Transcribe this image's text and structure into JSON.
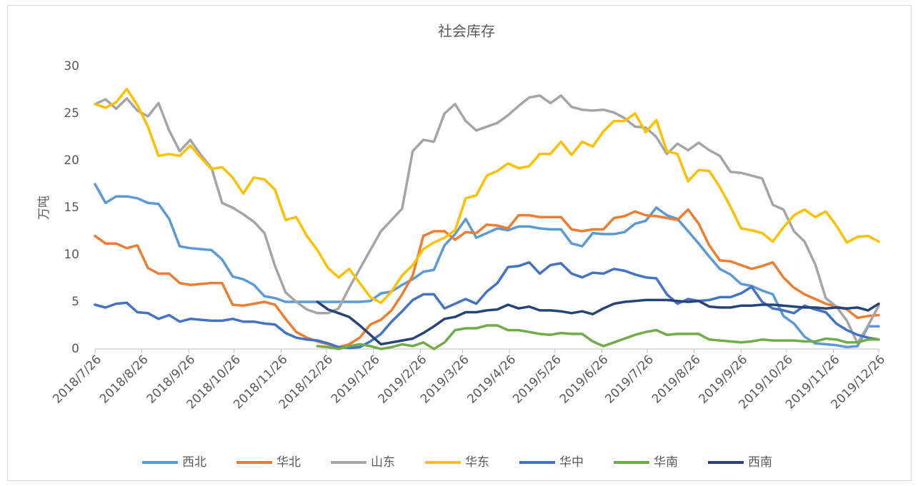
{
  "chart_data": {
    "type": "line",
    "title": "社会库存",
    "y_label": "万吨",
    "x": [
      "2018/7/26",
      "2018/8/2",
      "2018/8/9",
      "2018/8/16",
      "2018/8/23",
      "2018/8/30",
      "2018/9/6",
      "2018/9/13",
      "2018/9/20",
      "2018/9/27",
      "2018/10/4",
      "2018/10/11",
      "2018/10/18",
      "2018/10/25",
      "2018/11/1",
      "2018/11/8",
      "2018/11/15",
      "2018/11/22",
      "2018/11/29",
      "2018/12/6",
      "2018/12/13",
      "2018/12/20",
      "2018/12/27",
      "2019/1/3",
      "2019/1/10",
      "2019/1/17",
      "2019/1/24",
      "2019/1/31",
      "2019/2/7",
      "2019/2/14",
      "2019/2/21",
      "2019/2/28",
      "2019/3/7",
      "2019/3/14",
      "2019/3/21",
      "2019/3/28",
      "2019/4/4",
      "2019/4/11",
      "2019/4/18",
      "2019/4/25",
      "2019/5/2",
      "2019/5/9",
      "2019/5/16",
      "2019/5/23",
      "2019/5/30",
      "2019/6/6",
      "2019/6/13",
      "2019/6/20",
      "2019/6/27",
      "2019/7/4",
      "2019/7/11",
      "2019/7/18",
      "2019/7/25",
      "2019/8/1",
      "2019/8/8",
      "2019/8/15",
      "2019/8/22",
      "2019/8/29",
      "2019/9/5",
      "2019/9/12",
      "2019/9/19",
      "2019/9/26",
      "2019/10/3",
      "2019/10/10",
      "2019/10/17",
      "2019/10/24",
      "2019/10/31",
      "2019/11/7",
      "2019/11/14",
      "2019/11/21",
      "2019/11/28",
      "2019/12/5",
      "2019/12/12",
      "2019/12/19",
      "2019/12/26"
    ],
    "xlim": [
      "2018/7/26",
      "2019/12/26"
    ],
    "xticks": [
      "2018/7/26",
      "2018/8/26",
      "2018/9/26",
      "2018/10/26",
      "2018/11/26",
      "2018/12/26",
      "2019/1/26",
      "2019/2/26",
      "2019/3/26",
      "2019/4/26",
      "2019/5/26",
      "2019/6/26",
      "2019/7/26",
      "2019/8/26",
      "2019/9/26",
      "2019/10/26",
      "2019/11/26",
      "2019/12/26"
    ],
    "ylim": [
      0,
      30
    ],
    "yticks": [
      0,
      5,
      10,
      15,
      20,
      25,
      30
    ],
    "grid": false,
    "series": [
      {
        "name": "西北",
        "color": "#5b9bd5",
        "values": [
          17.5,
          15.5,
          16.2,
          16.2,
          16.0,
          15.5,
          15.4,
          13.8,
          10.9,
          10.7,
          10.6,
          10.5,
          9.5,
          7.7,
          7.4,
          6.8,
          5.6,
          5.4,
          5.0,
          5.0,
          5.0,
          5.0,
          5.0,
          5.0,
          5.0,
          5.0,
          5.1,
          5.9,
          6.1,
          6.8,
          7.4,
          8.2,
          8.4,
          11.0,
          12.2,
          13.8,
          11.8,
          12.3,
          12.8,
          12.6,
          13.0,
          13.0,
          12.8,
          12.7,
          12.7,
          11.2,
          10.9,
          12.3,
          12.2,
          12.2,
          12.4,
          13.3,
          13.6,
          15.0,
          14.2,
          13.8,
          12.5,
          11.2,
          9.8,
          8.5,
          7.9,
          6.9,
          6.7,
          6.2,
          5.8,
          3.5,
          2.7,
          1.3,
          0.6,
          0.5,
          0.4,
          0.2,
          0.3,
          2.4,
          2.4
        ]
      },
      {
        "name": "华北",
        "color": "#ed7d31",
        "values": [
          12.0,
          11.2,
          11.2,
          10.7,
          11.0,
          8.6,
          8.0,
          8.0,
          7.0,
          6.8,
          6.9,
          7.0,
          7.0,
          4.7,
          4.6,
          4.8,
          5.0,
          4.7,
          3.2,
          1.8,
          1.2,
          0.8,
          0.5,
          0.2,
          0.5,
          1.2,
          2.6,
          3.1,
          4.1,
          5.8,
          7.8,
          12.0,
          12.5,
          12.5,
          11.6,
          12.4,
          12.3,
          13.2,
          13.1,
          12.8,
          14.2,
          14.2,
          14.0,
          14.0,
          14.0,
          12.7,
          12.5,
          12.7,
          12.7,
          13.9,
          14.1,
          14.6,
          14.2,
          14.1,
          13.9,
          13.7,
          14.8,
          13.3,
          11.0,
          9.4,
          9.3,
          8.9,
          8.5,
          8.8,
          9.2,
          7.6,
          6.5,
          5.8,
          5.3,
          4.8,
          4.5,
          4.2,
          3.3,
          3.5,
          3.6
        ]
      },
      {
        "name": "山东",
        "color": "#a5a5a5",
        "values": [
          26.0,
          26.5,
          25.5,
          26.6,
          25.3,
          24.7,
          26.1,
          23.2,
          21.0,
          22.2,
          20.6,
          19.2,
          15.5,
          15.0,
          14.3,
          13.5,
          12.3,
          8.8,
          6.0,
          5.0,
          4.2,
          3.8,
          3.8,
          4.3,
          6.5,
          8.5,
          10.5,
          12.5,
          13.7,
          14.9,
          21.0,
          22.2,
          22.0,
          25.0,
          26.0,
          24.2,
          23.2,
          23.6,
          24.0,
          24.8,
          25.8,
          26.7,
          26.9,
          26.1,
          26.9,
          25.7,
          25.4,
          25.3,
          25.4,
          25.1,
          24.5,
          23.6,
          23.5,
          22.5,
          20.7,
          21.8,
          21.1,
          21.9,
          21.1,
          20.5,
          18.8,
          18.7,
          18.4,
          18.1,
          15.3,
          14.8,
          12.5,
          11.4,
          9.0,
          5.4,
          4.5,
          3.0,
          0.6,
          2.5,
          4.6
        ]
      },
      {
        "name": "华东",
        "color": "#ffc000",
        "values": [
          26.0,
          25.6,
          26.2,
          27.6,
          25.9,
          23.6,
          20.5,
          20.7,
          20.5,
          21.6,
          20.3,
          19.1,
          19.3,
          18.2,
          16.5,
          18.2,
          18.0,
          16.9,
          13.7,
          14.0,
          12.0,
          10.5,
          8.6,
          7.6,
          8.5,
          7.0,
          5.5,
          4.9,
          6.1,
          7.8,
          8.9,
          10.6,
          11.3,
          11.8,
          12.6,
          16.0,
          16.3,
          18.4,
          18.9,
          19.7,
          19.2,
          19.4,
          20.7,
          20.7,
          22.0,
          20.6,
          22.0,
          21.5,
          23.1,
          24.2,
          24.2,
          25.0,
          23.0,
          24.3,
          21.0,
          20.7,
          17.8,
          19.0,
          18.9,
          17.2,
          15.1,
          12.8,
          12.6,
          12.3,
          11.4,
          12.9,
          14.2,
          14.8,
          14.0,
          14.6,
          13.1,
          11.3,
          11.9,
          12.0,
          11.4
        ]
      },
      {
        "name": "华中",
        "color": "#4472c4",
        "values": [
          4.7,
          4.4,
          4.8,
          4.9,
          3.9,
          3.8,
          3.2,
          3.6,
          2.9,
          3.2,
          3.1,
          3.0,
          3.0,
          3.2,
          2.9,
          2.9,
          2.7,
          2.6,
          1.7,
          1.2,
          1.0,
          0.9,
          0.6,
          0.2,
          0.1,
          0.2,
          0.8,
          1.6,
          2.9,
          4.0,
          5.2,
          5.8,
          5.8,
          4.3,
          4.8,
          5.3,
          4.8,
          6.1,
          7.0,
          8.7,
          8.8,
          9.2,
          8.0,
          8.9,
          9.1,
          8.0,
          7.6,
          8.1,
          8.0,
          8.5,
          8.3,
          7.9,
          7.6,
          7.5,
          5.8,
          4.8,
          5.3,
          5.1,
          5.2,
          5.5,
          5.5,
          5.9,
          6.6,
          5.0,
          4.3,
          4.1,
          3.8,
          4.6,
          4.2,
          3.9,
          2.7,
          2.0,
          1.5,
          1.2,
          1.0
        ]
      },
      {
        "name": "华南",
        "color": "#70ad47",
        "values": [
          null,
          null,
          null,
          null,
          null,
          null,
          null,
          null,
          null,
          null,
          null,
          null,
          null,
          null,
          null,
          null,
          null,
          null,
          null,
          null,
          null,
          0.3,
          0.2,
          0.0,
          0.3,
          0.5,
          0.3,
          0.0,
          0.2,
          0.5,
          0.3,
          0.7,
          0.0,
          0.7,
          2.0,
          2.2,
          2.2,
          2.5,
          2.5,
          2.0,
          2.0,
          1.8,
          1.6,
          1.5,
          1.7,
          1.6,
          1.6,
          0.8,
          0.3,
          0.7,
          1.1,
          1.5,
          1.8,
          2.0,
          1.5,
          1.6,
          1.6,
          1.6,
          1.0,
          0.9,
          0.8,
          0.7,
          0.8,
          1.0,
          0.9,
          0.9,
          0.9,
          0.8,
          0.8,
          1.1,
          1.0,
          0.7,
          0.7,
          1.0,
          1.0
        ]
      },
      {
        "name": "西南",
        "color": "#264478",
        "values": [
          null,
          null,
          null,
          null,
          null,
          null,
          null,
          null,
          null,
          null,
          null,
          null,
          null,
          null,
          null,
          null,
          null,
          null,
          null,
          null,
          null,
          5.0,
          4.2,
          3.8,
          3.4,
          2.5,
          1.5,
          0.5,
          0.7,
          0.9,
          1.1,
          1.7,
          2.4,
          3.2,
          3.4,
          3.9,
          3.9,
          4.1,
          4.2,
          4.7,
          4.3,
          4.5,
          4.1,
          4.1,
          4.0,
          3.8,
          4.0,
          3.7,
          4.3,
          4.8,
          5.0,
          5.1,
          5.2,
          5.2,
          5.2,
          5.1,
          5.0,
          5.1,
          4.5,
          4.4,
          4.4,
          4.6,
          4.6,
          4.7,
          4.7,
          4.6,
          4.5,
          4.4,
          4.4,
          4.3,
          4.4,
          4.3,
          4.4,
          4.1,
          4.8
        ]
      }
    ]
  }
}
